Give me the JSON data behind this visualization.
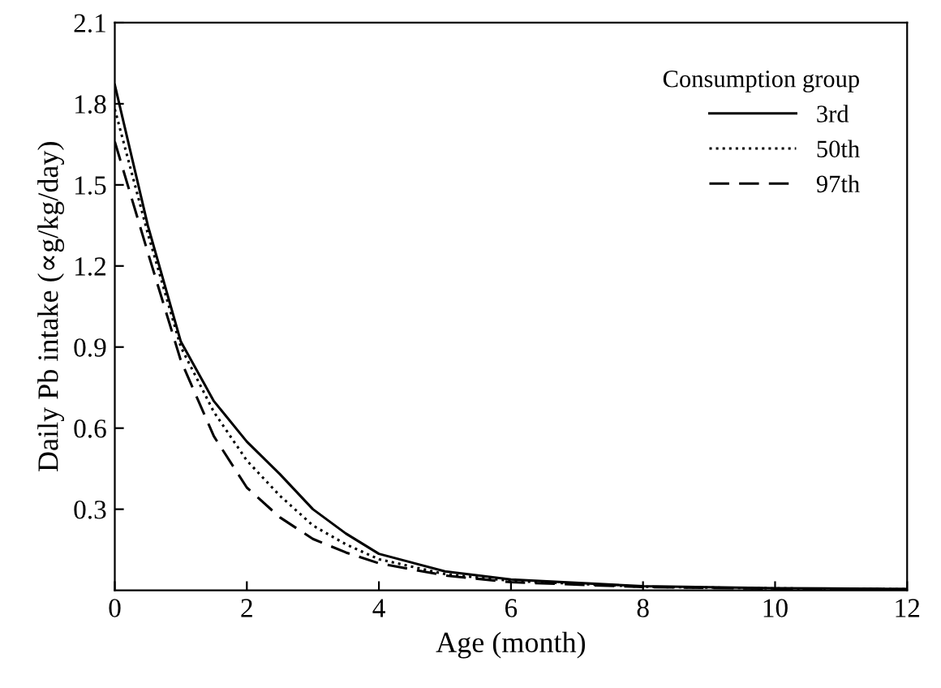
{
  "chart_data": {
    "type": "line",
    "xlabel": "Age (month)",
    "ylabel": "Daily Pb intake (∝g/kg/day)",
    "legend_title": "Consumption group",
    "x": [
      0,
      0.5,
      1,
      1.5,
      2,
      2.5,
      3,
      3.5,
      4,
      5,
      6,
      8,
      10,
      12
    ],
    "series": [
      {
        "name": "3rd",
        "color": "#000000",
        "line_style": "solid",
        "values": [
          1.87,
          1.35,
          0.92,
          0.7,
          0.55,
          0.43,
          0.3,
          0.21,
          0.135,
          0.07,
          0.04,
          0.015,
          0.008,
          0.005
        ]
      },
      {
        "name": "50th",
        "color": "#000000",
        "line_style": "dotted",
        "values": [
          1.78,
          1.32,
          0.9,
          0.66,
          0.48,
          0.35,
          0.24,
          0.17,
          0.115,
          0.06,
          0.035,
          0.013,
          0.007,
          0.004
        ]
      },
      {
        "name": "97th",
        "color": "#000000",
        "line_style": "dashed",
        "values": [
          1.66,
          1.25,
          0.85,
          0.57,
          0.38,
          0.27,
          0.19,
          0.14,
          0.1,
          0.055,
          0.03,
          0.012,
          0.006,
          0.004
        ]
      }
    ],
    "xlim": [
      0,
      12
    ],
    "xticks": [
      0,
      2,
      4,
      6,
      8,
      10,
      12
    ],
    "ylim": [
      0,
      2.1
    ],
    "yticks": [
      0.3,
      0.6,
      0.9,
      1.2,
      1.5,
      1.8,
      2.1
    ],
    "grid": false,
    "legend": "top right",
    "marker": "none"
  }
}
